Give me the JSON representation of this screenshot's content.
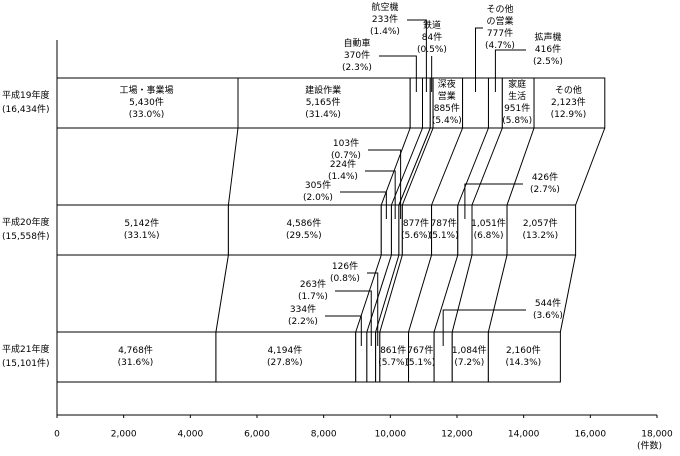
{
  "chart_data": {
    "type": "bar",
    "orientation": "horizontal",
    "stacked": true,
    "categories": [
      "平成19年度",
      "平成20年度",
      "平成21年度"
    ],
    "total_labels": [
      "(16,434件)",
      "(15,558件)",
      "(15,101件)"
    ],
    "series": [
      {
        "name": "工場・事業場",
        "color": "#ffffff",
        "values": [
          5430,
          5142,
          4768
        ],
        "value_labels": [
          "5,430件",
          "5,142件",
          "4,768件"
        ],
        "percent_labels": [
          "(33.0%)",
          "(33.1%)",
          "(31.6%)"
        ]
      },
      {
        "name": "建設作業",
        "color": "#ffffff",
        "values": [
          5165,
          4586,
          4194
        ],
        "value_labels": [
          "5,165件",
          "4,586件",
          "4,194件"
        ],
        "percent_labels": [
          "(31.4%)",
          "(29.5%)",
          "(27.8%)"
        ]
      },
      {
        "name": "自動車",
        "color": "#ffffff",
        "values": [
          370,
          305,
          334
        ],
        "value_labels": [
          "370件",
          "305件",
          "334件"
        ],
        "percent_labels": [
          "(2.3%)",
          "(2.0%)",
          "(2.2%)"
        ]
      },
      {
        "name": "航空機",
        "color": "#ffffff",
        "values": [
          233,
          224,
          263
        ],
        "value_labels": [
          "233件",
          "224件",
          "263件"
        ],
        "percent_labels": [
          "(1.4%)",
          "(1.4%)",
          "(1.7%)"
        ]
      },
      {
        "name": "鉄道",
        "color": "#ffffff",
        "values": [
          84,
          103,
          126
        ],
        "value_labels": [
          "84件",
          "103件",
          "126件"
        ],
        "percent_labels": [
          "(0.5%)",
          "(0.7%)",
          "(0.8%)"
        ]
      },
      {
        "name": "深夜営業",
        "color": "#ffffff",
        "values": [
          885,
          877,
          861
        ],
        "value_labels": [
          "885件",
          "877件",
          "861件"
        ],
        "percent_labels": [
          "(5.4%)",
          "(5.6%)",
          "(5.7%)"
        ]
      },
      {
        "name": "その他の営業",
        "color": "#ffffff",
        "values": [
          777,
          787,
          767
        ],
        "value_labels": [
          "777件",
          "787件",
          "767件"
        ],
        "percent_labels": [
          "(4.7%)",
          "(5.1%)",
          "(5.1%)"
        ]
      },
      {
        "name": "拡声機",
        "color": "#ffffff",
        "values": [
          416,
          426,
          544
        ],
        "value_labels": [
          "416件",
          "426件",
          "544件"
        ],
        "percent_labels": [
          "(2.5%)",
          "(2.7%)",
          "(3.6%)"
        ]
      },
      {
        "name": "家庭生活",
        "color": "#ffffff",
        "values": [
          951,
          1051,
          1084
        ],
        "value_labels": [
          "951件",
          "1,051件",
          "1,084件"
        ],
        "percent_labels": [
          "(5.8%)",
          "(6.8%)",
          "(7.2%)"
        ]
      },
      {
        "name": "その他",
        "color": "#ffffff",
        "values": [
          2123,
          2057,
          2160
        ],
        "value_labels": [
          "2,123件",
          "2,057件",
          "2,160件"
        ],
        "percent_labels": [
          "(12.9%)",
          "(13.2%)",
          "(14.3%)"
        ]
      }
    ],
    "xlim": [
      0,
      18000
    ],
    "xticks": [
      0,
      {
        "value": 2000,
        "label": "2,000"
      },
      {
        "value": 4000,
        "label": "4,000"
      },
      {
        "value": 6000,
        "label": "6,000"
      },
      {
        "value": 8000,
        "label": "8,000"
      },
      {
        "value": 10000,
        "label": "10,000"
      },
      {
        "value": 12000,
        "label": "12,000"
      },
      {
        "value": 14000,
        "label": "14,000"
      },
      {
        "value": 16000,
        "label": "16,000"
      },
      {
        "value": 18000,
        "label": "18,000"
      }
    ],
    "xlabel": "(件数)"
  }
}
